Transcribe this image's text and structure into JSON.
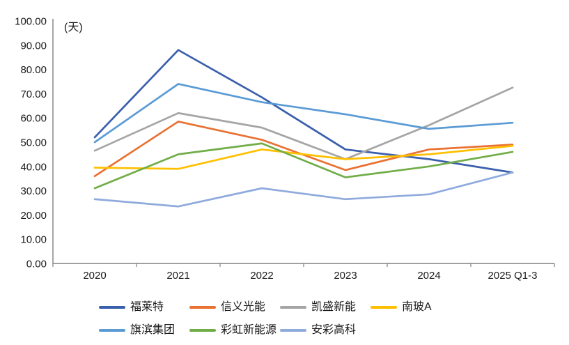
{
  "chart_data": {
    "type": "line",
    "title": "",
    "ylabel": "(天)",
    "xlabel": "",
    "ylim": [
      0,
      100
    ],
    "yticks": [
      0,
      10,
      20,
      30,
      40,
      50,
      60,
      70,
      80,
      90,
      100
    ],
    "ytick_format": "two_decimals",
    "categories": [
      "2020",
      "2021",
      "2022",
      "2023",
      "2024",
      "2025 Q1-3"
    ],
    "series": [
      {
        "key": "fulaite",
        "name": "福莱特",
        "color": "#3A5FAC",
        "values": [
          52,
          88,
          68.5,
          47,
          43,
          37.5
        ]
      },
      {
        "key": "xinyi",
        "name": "信义光能",
        "color": "#E97132",
        "values": [
          36,
          58.5,
          51,
          38.5,
          47,
          49
        ]
      },
      {
        "key": "kaisheng",
        "name": "凯盛新能",
        "color": "#A5A5A5",
        "values": [
          46.5,
          62,
          56,
          43,
          57,
          72.5
        ]
      },
      {
        "key": "nanboA",
        "name": "南玻A",
        "color": "#FFC000",
        "values": [
          39.5,
          39,
          47,
          43,
          45,
          48.5
        ]
      },
      {
        "key": "qibin",
        "name": "旗滨集团",
        "color": "#5B9BD5",
        "values": [
          50,
          74,
          66.5,
          61.5,
          55.5,
          58
        ]
      },
      {
        "key": "caihong",
        "name": "彩虹新能源",
        "color": "#70AD47",
        "values": [
          31,
          45,
          49.5,
          35.5,
          40,
          46
        ]
      },
      {
        "key": "ancai",
        "name": "安彩高科",
        "color": "#8FAADC",
        "values": [
          26.5,
          23.5,
          31,
          26.5,
          28.5,
          37.5
        ]
      }
    ],
    "legend_position": "bottom",
    "grid": false,
    "axis_color": "#808080",
    "text_color": "#1A1A1A"
  }
}
